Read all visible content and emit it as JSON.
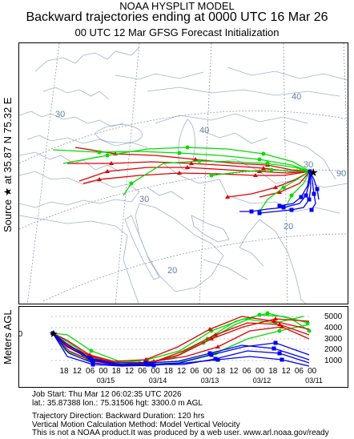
{
  "header": {
    "model": "NOAA HYSPLIT MODEL",
    "title": "Backward trajectories ending at 0000 UTC 16 Mar 26",
    "subtitle": "00 UTC 12 Mar    GFSG  Forecast Initialization"
  },
  "side_labels": {
    "source": "Source ★ at   35.87 N   75.32 E",
    "meters": "Meters AGL"
  },
  "map": {
    "latitude_labels": [
      "40",
      "30",
      "20",
      "40",
      "30",
      "20"
    ],
    "longitude_labels": [
      "30",
      "90"
    ],
    "colors": {
      "land_lines": "#9fb2c8",
      "grid": "#7a8ea8",
      "red": "#e00000",
      "green": "#00dd00",
      "blue": "#0000ee"
    }
  },
  "height_panel": {
    "start_height_label": "3300",
    "y_tick_labels": [
      "5000",
      "4000",
      "3000",
      "2000",
      "1000"
    ],
    "hour_labels": [
      "18",
      "12",
      "06",
      "00",
      "18",
      "12",
      "06",
      "00",
      "18",
      "12",
      "06",
      "00",
      "18",
      "12",
      "06",
      "00",
      "18",
      "12",
      "06",
      "00"
    ],
    "date_labels": [
      "03/15",
      "03/14",
      "03/13",
      "03/12",
      "03/11"
    ]
  },
  "info": {
    "job_start": "Job Start: Thu Mar 12 06:02:35 UTC 2026",
    "location": "lat.: 35.87388   lon.: 75.31506    hgt: 3300.0 m AGL",
    "direction": "Trajectory Direction: Backward       Duration: 120 hrs",
    "vertical": "Vertical Motion Calculation Method: Model Vertical Velocity",
    "disclaimer": "This is not a NOAA product.It was produced by a web user. www.arl.noaa.gov/ready"
  }
}
